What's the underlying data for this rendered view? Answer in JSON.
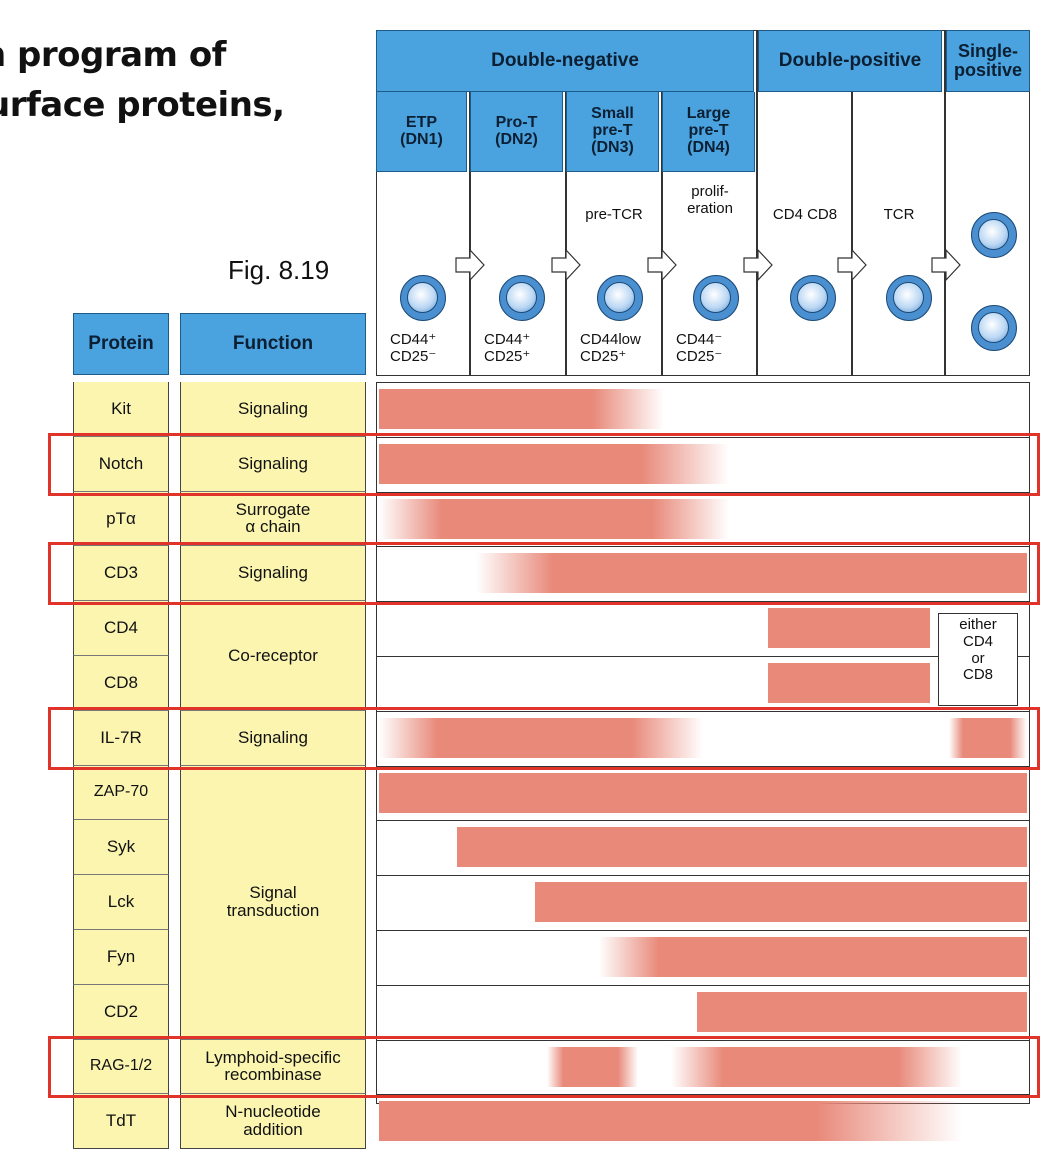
{
  "heading": {
    "line1": "n program of",
    "line2": "urface proteins,"
  },
  "figure_label": "Fig. 8.19",
  "phase_headers": [
    {
      "label": "Double-negative"
    },
    {
      "label": "Double-positive"
    },
    {
      "label": "Single-\npositive"
    }
  ],
  "stages": [
    {
      "name": "ETP\n(DN1)",
      "marker": "",
      "phenotype": "CD44⁺\nCD25⁻"
    },
    {
      "name": "Pro-T\n(DN2)",
      "marker": "",
      "phenotype": "CD44⁺\nCD25⁺"
    },
    {
      "name": "Small\npre-T\n(DN3)",
      "marker": "pre-TCR",
      "phenotype": "CD44low\nCD25⁺"
    },
    {
      "name": "Large\npre-T\n(DN4)",
      "marker": "prolif-\neration",
      "phenotype": "CD44⁻\nCD25⁻"
    },
    {
      "name": "",
      "marker": "CD4 CD8",
      "phenotype": ""
    },
    {
      "name": "",
      "marker": "TCR",
      "phenotype": ""
    },
    {
      "name": "",
      "marker": "",
      "phenotype": ""
    }
  ],
  "table_header": {
    "protein": "Protein",
    "function": "Function"
  },
  "functions": [
    {
      "label": "Signaling"
    },
    {
      "label": "Signaling"
    },
    {
      "label": "Surrogate\nα chain"
    },
    {
      "label": "Signaling"
    },
    {
      "label": "Co-receptor"
    },
    {
      "label": "Signaling"
    },
    {
      "label": "Signal\ntransduction"
    },
    {
      "label": "Lymphoid-specific\nrecombinase"
    },
    {
      "label": "N-nucleotide\naddition"
    }
  ],
  "proteins": [
    {
      "name": "Kit",
      "segments": [
        [
          0.0,
          0.44
        ]
      ],
      "fade_left": false,
      "fade_right": true
    },
    {
      "name": "Notch",
      "segments": [
        [
          0.0,
          0.54
        ]
      ],
      "fade_left": false,
      "fade_right": true
    },
    {
      "name": "pTα",
      "segments": [
        [
          0.0,
          0.54
        ]
      ],
      "fade_left": true,
      "fade_right": true
    },
    {
      "name": "CD3",
      "segments": [
        [
          0.15,
          1.0
        ]
      ],
      "fade_left": true,
      "fade_right": false
    },
    {
      "name": "CD4",
      "segments": [
        [
          0.6,
          0.85
        ]
      ],
      "fade_left": false,
      "fade_right": false
    },
    {
      "name": "CD8",
      "segments": [
        [
          0.6,
          0.85
        ]
      ],
      "fade_left": false,
      "fade_right": false
    },
    {
      "name": "IL-7R",
      "segments": [
        [
          0.0,
          0.5
        ],
        [
          0.88,
          1.0
        ]
      ],
      "fade_left": true,
      "fade_right": true
    },
    {
      "name": "ZAP-70",
      "segments": [
        [
          0.0,
          1.0
        ]
      ],
      "fade_left": false,
      "fade_right": false
    },
    {
      "name": "Syk",
      "segments": [
        [
          0.12,
          1.0
        ]
      ],
      "fade_left": false,
      "fade_right": false
    },
    {
      "name": "Lck",
      "segments": [
        [
          0.24,
          1.0
        ]
      ],
      "fade_left": false,
      "fade_right": false
    },
    {
      "name": "Fyn",
      "segments": [
        [
          0.34,
          1.0
        ]
      ],
      "fade_left": true,
      "fade_right": false
    },
    {
      "name": "CD2",
      "segments": [
        [
          0.49,
          1.0
        ]
      ],
      "fade_left": false,
      "fade_right": false
    },
    {
      "name": "RAG-1/2",
      "segments": [
        [
          0.26,
          0.4
        ],
        [
          0.45,
          0.9
        ]
      ],
      "fade_left": true,
      "fade_right": true
    },
    {
      "name": "TdT",
      "segments": [
        [
          0.0,
          0.9
        ]
      ],
      "fade_left": false,
      "fade_right": true
    }
  ],
  "either_note": "either\nCD4\nor\nCD8",
  "colors": {
    "bar": "#e8897a",
    "header_blue": "#4aa3df",
    "table_yellow": "#fbf5b0",
    "highlight": "#e0342b"
  },
  "highlighted_rows": [
    "Notch",
    "CD3",
    "IL-7R",
    "RAG-1/2"
  ]
}
